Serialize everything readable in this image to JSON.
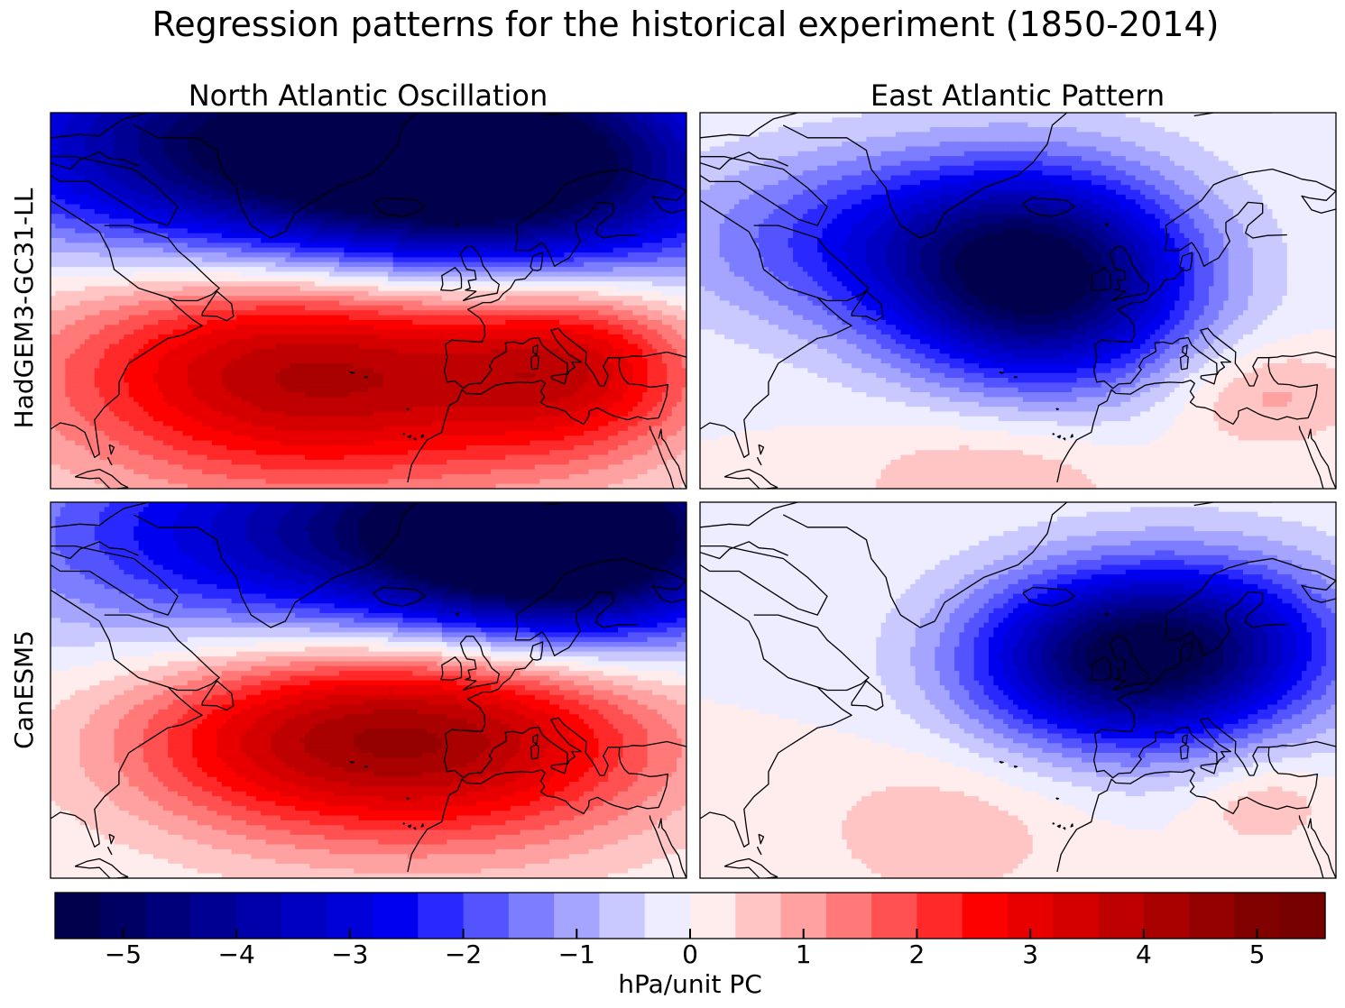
{
  "figure_title": "Regression patterns for the historical experiment (1850-2014)",
  "column_titles": [
    "North Atlantic Oscillation",
    "East Atlantic Pattern"
  ],
  "row_labels": [
    "HadGEM3-GC31-LL",
    "CanESM5"
  ],
  "colorbar": {
    "label": "hPa/unit PC",
    "ticks": [
      -5,
      -4,
      -3,
      -2,
      -1,
      0,
      1,
      2,
      3,
      4,
      5
    ],
    "tick_labels": [
      "−5",
      "−4",
      "−3",
      "−2",
      "−1",
      "0",
      "1",
      "2",
      "3",
      "4",
      "5"
    ],
    "range": [
      -5.6,
      5.6
    ],
    "step": 0.4,
    "colormap": "seismic",
    "colors": [
      "#00004c",
      "#000063",
      "#00007b",
      "#000093",
      "#0000aa",
      "#0000c2",
      "#0000d9",
      "#0000f1",
      "#2929ff",
      "#5454ff",
      "#7d7dff",
      "#a5a5ff",
      "#c9c9ff",
      "#ededff",
      "#ffeded",
      "#ffc5c5",
      "#ffa1a1",
      "#ff7979",
      "#ff5151",
      "#ff2929",
      "#fd0000",
      "#e80000",
      "#d40000",
      "#bf0000",
      "#a90000",
      "#950000",
      "#810000",
      "#770000"
    ]
  },
  "chart_data": [
    {
      "type": "heatmap",
      "title": "North Atlantic Oscillation",
      "row_label": "HadGEM3-GC31-LL",
      "units": "hPa/unit PC",
      "centers": [
        {
          "lon": -45,
          "lat": 75,
          "amp": -4.9,
          "rlon": 45,
          "rlat": 13
        },
        {
          "lon": 5,
          "lat": 70,
          "amp": -4.7,
          "rlon": 35,
          "rlat": 13
        },
        {
          "lon": -35,
          "lat": 39,
          "amp": 4.3,
          "rlon": 38,
          "rlat": 13
        },
        {
          "lon": 18,
          "lat": 40,
          "amp": 2.4,
          "rlon": 18,
          "rlat": 10
        }
      ]
    },
    {
      "type": "heatmap",
      "title": "East Atlantic Pattern",
      "row_label": "HadGEM3-GC31-LL",
      "units": "hPa/unit PC",
      "centers": [
        {
          "lon": -20,
          "lat": 53,
          "amp": -5.2,
          "rlon": 22,
          "rlat": 12
        },
        {
          "lon": -55,
          "lat": 60,
          "amp": -2.0,
          "rlon": 30,
          "rlat": 10
        },
        {
          "lon": -30,
          "lat": 22,
          "amp": 0.9,
          "rlon": 20,
          "rlat": 9
        },
        {
          "lon": 25,
          "lat": 35,
          "amp": 1.0,
          "rlon": 14,
          "rlat": 6
        }
      ]
    },
    {
      "type": "heatmap",
      "title": "North Atlantic Oscillation",
      "row_label": "CanESM5",
      "units": "hPa/unit PC",
      "centers": [
        {
          "lon": -20,
          "lat": 75,
          "amp": -4.2,
          "rlon": 50,
          "rlat": 13
        },
        {
          "lon": 15,
          "lat": 74,
          "amp": -4.9,
          "rlon": 25,
          "rlat": 11
        },
        {
          "lon": -10,
          "lat": 43,
          "amp": 4.2,
          "rlon": 32,
          "rlat": 12
        },
        {
          "lon": -50,
          "lat": 42,
          "amp": 1.5,
          "rlon": 25,
          "rlat": 10
        }
      ]
    },
    {
      "type": "heatmap",
      "title": "East Atlantic Pattern",
      "row_label": "CanESM5",
      "units": "hPa/unit PC",
      "centers": [
        {
          "lon": -5,
          "lat": 55,
          "amp": -4.8,
          "rlon": 22,
          "rlat": 10
        },
        {
          "lon": 20,
          "lat": 58,
          "amp": -2.0,
          "rlon": 20,
          "rlat": 10
        },
        {
          "lon": -40,
          "lat": 28,
          "amp": 0.7,
          "rlon": 20,
          "rlat": 9
        },
        {
          "lon": 25,
          "lat": 32,
          "amp": 0.8,
          "rlon": 10,
          "rlat": 5
        }
      ]
    }
  ]
}
